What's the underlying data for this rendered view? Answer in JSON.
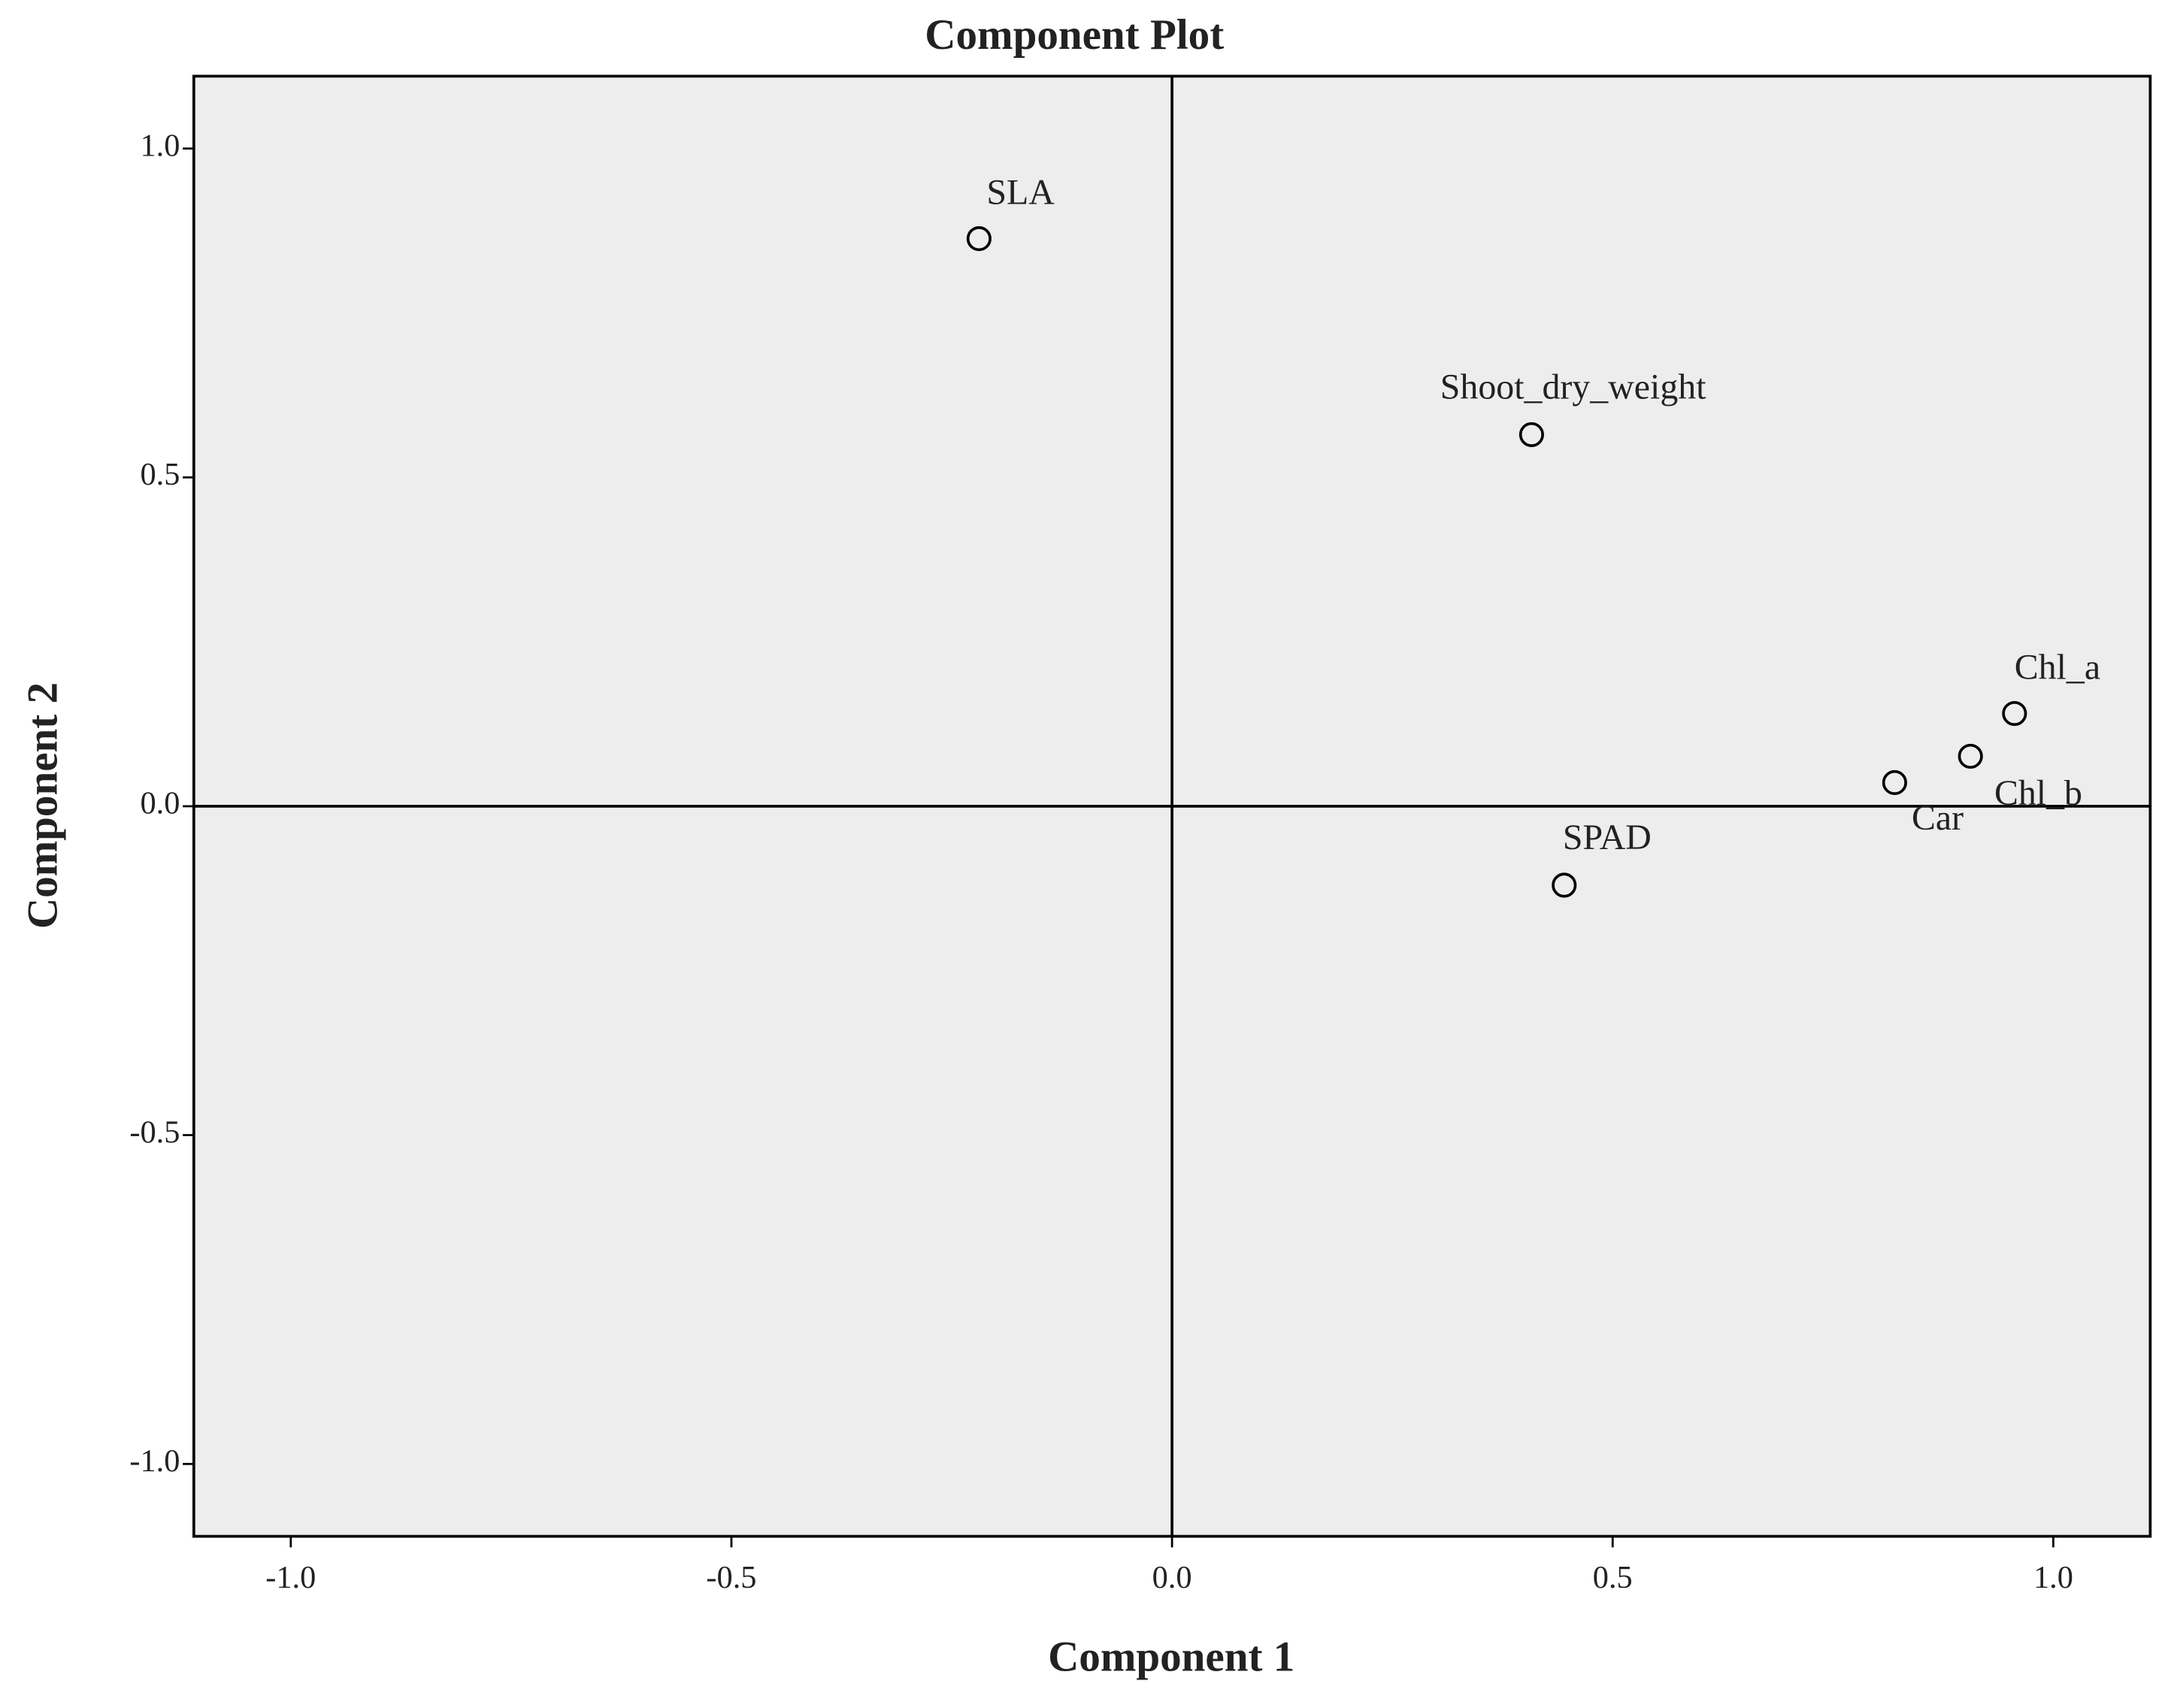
{
  "chart_data": {
    "type": "scatter",
    "title": "Component Plot",
    "x_label": "Component 1",
    "y_label": "Component 2",
    "labels": [
      "SLA",
      "Shoot_dry_weight",
      "Chl_a",
      "Chl_b",
      "Car",
      "SPAD"
    ],
    "x": [
      -0.219,
      0.408,
      0.956,
      0.906,
      0.82,
      0.445
    ],
    "y": [
      0.863,
      0.565,
      0.141,
      0.076,
      0.036,
      -0.12
    ],
    "color": "#000000",
    "xlim": [
      -1.11,
      1.11
    ],
    "ylim": [
      -1.11,
      1.11
    ],
    "xticks": [
      {
        "value": -1,
        "label": "-1.0"
      },
      -0.5,
      {
        "value": 0,
        "label": "0.0"
      },
      0.5,
      {
        "value": 1,
        "label": "1.0"
      }
    ],
    "yticks": [
      {
        "value": -1,
        "label": "-1.0"
      },
      -0.5,
      {
        "value": 0,
        "label": "0.0"
      },
      0.5,
      {
        "value": 1,
        "label": "1.0"
      }
    ],
    "zero_lines": true,
    "grid": false
  }
}
